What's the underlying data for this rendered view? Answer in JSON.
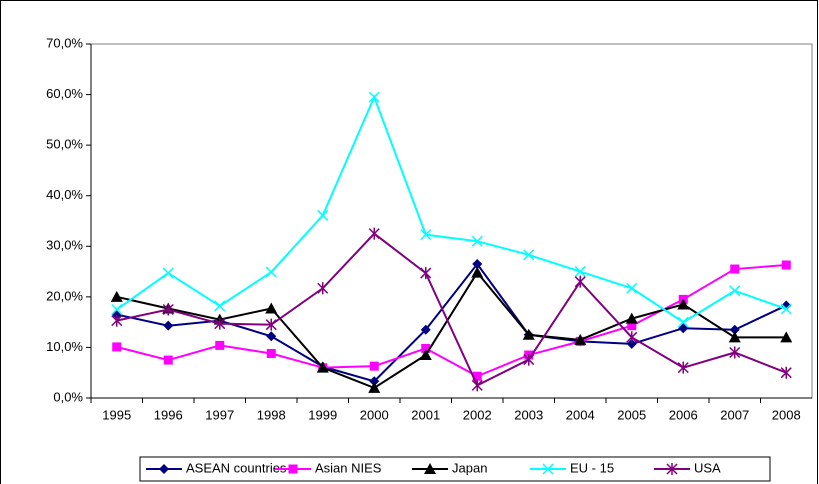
{
  "chart_data": {
    "type": "line",
    "categories": [
      "1995",
      "1996",
      "1997",
      "1998",
      "1999",
      "2000",
      "2001",
      "2002",
      "2003",
      "2004",
      "2005",
      "2006",
      "2007",
      "2008"
    ],
    "series": [
      {
        "name": "ASEAN countries",
        "color": "#000080",
        "marker": "diamond",
        "values": [
          16.5,
          14.3,
          15.3,
          12.2,
          6.2,
          3.3,
          13.5,
          26.5,
          12.5,
          11.2,
          10.7,
          13.8,
          13.5,
          18.3
        ]
      },
      {
        "name": "Asian NIES",
        "color": "#ff00ff",
        "marker": "square",
        "values": [
          10.1,
          7.5,
          10.4,
          8.8,
          6.0,
          6.3,
          9.8,
          4.3,
          8.5,
          11.2,
          14.3,
          19.5,
          25.5,
          26.3
        ]
      },
      {
        "name": "Japan",
        "color": "#000000",
        "marker": "triangle",
        "values": [
          20.0,
          17.7,
          15.5,
          17.7,
          6.0,
          2.0,
          8.5,
          24.8,
          12.5,
          11.5,
          15.7,
          18.5,
          12.0,
          12.0
        ]
      },
      {
        "name": "EU - 15",
        "color": "#00ffff",
        "marker": "x",
        "values": [
          17.5,
          24.7,
          18.2,
          24.9,
          36.1,
          59.5,
          32.3,
          31.0,
          28.3,
          25.0,
          21.7,
          15.0,
          21.2,
          17.6
        ]
      },
      {
        "name": "USA",
        "color": "#800080",
        "marker": "star",
        "values": [
          15.3,
          17.5,
          14.7,
          14.5,
          21.7,
          32.5,
          24.7,
          2.5,
          7.6,
          23.0,
          12.0,
          6.0,
          9.0,
          5.0
        ]
      }
    ],
    "ylim": [
      0,
      70
    ],
    "yticks": [
      {
        "value": 0,
        "label": "0,0%"
      },
      {
        "value": 10,
        "label": "10,0%"
      },
      {
        "value": 20,
        "label": "20,0%"
      },
      {
        "value": 30,
        "label": "30,0%"
      },
      {
        "value": 40,
        "label": "40,0%"
      },
      {
        "value": 50,
        "label": "50,0%"
      },
      {
        "value": 60,
        "label": "60,0%"
      },
      {
        "value": 70,
        "label": "70,0%"
      }
    ],
    "grid": false
  }
}
